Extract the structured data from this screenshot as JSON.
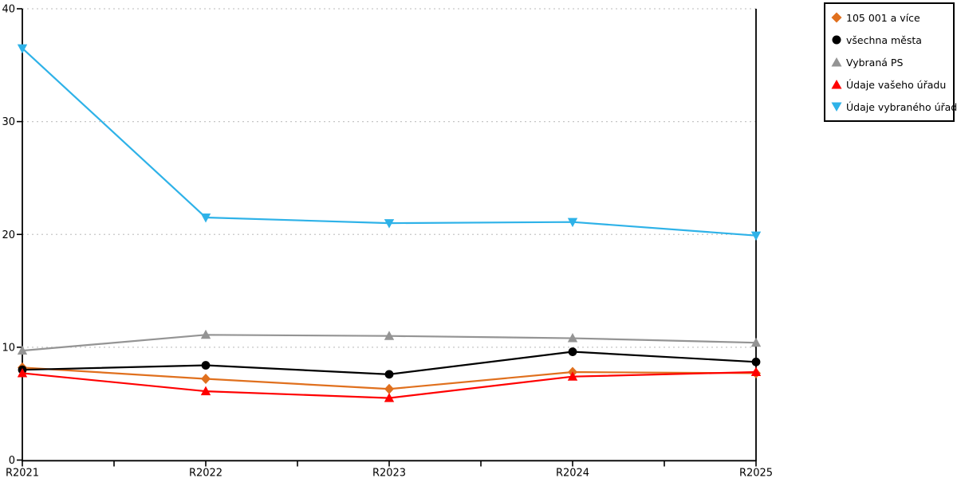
{
  "chart_data": {
    "type": "line",
    "x": [
      "R2021",
      "R2022",
      "R2023",
      "R2024",
      "R2025"
    ],
    "series": [
      {
        "name": "105 001 a více",
        "marker": "diamond",
        "color": "#e0701e",
        "values": [
          8.2,
          7.2,
          6.3,
          7.8,
          7.7
        ]
      },
      {
        "name": "všechna města",
        "marker": "circle",
        "color": "#000000",
        "values": [
          8.0,
          8.4,
          7.6,
          9.6,
          8.7
        ]
      },
      {
        "name": "Vybraná PS",
        "marker": "triangle-up",
        "color": "#949494",
        "values": [
          9.7,
          11.1,
          11.0,
          10.8,
          10.4
        ]
      },
      {
        "name": "Údaje vašeho úřadu",
        "marker": "triangle-up",
        "color": "#ff0000",
        "values": [
          7.7,
          6.1,
          5.5,
          7.4,
          7.8
        ]
      },
      {
        "name": "Údaje vybraného úřadu",
        "marker": "triangle-down",
        "color": "#2eb2e8",
        "values": [
          36.5,
          21.5,
          21.0,
          21.1,
          19.9
        ]
      }
    ],
    "title": "",
    "xlabel": "",
    "ylabel": "",
    "ylim": [
      0,
      40
    ],
    "yticks": [
      0,
      10,
      20,
      30,
      40
    ],
    "grid": "horizontal-dotted",
    "gridline_color": "#c6c6c6",
    "axis_color": "#000000",
    "legend_position": "top-right"
  }
}
